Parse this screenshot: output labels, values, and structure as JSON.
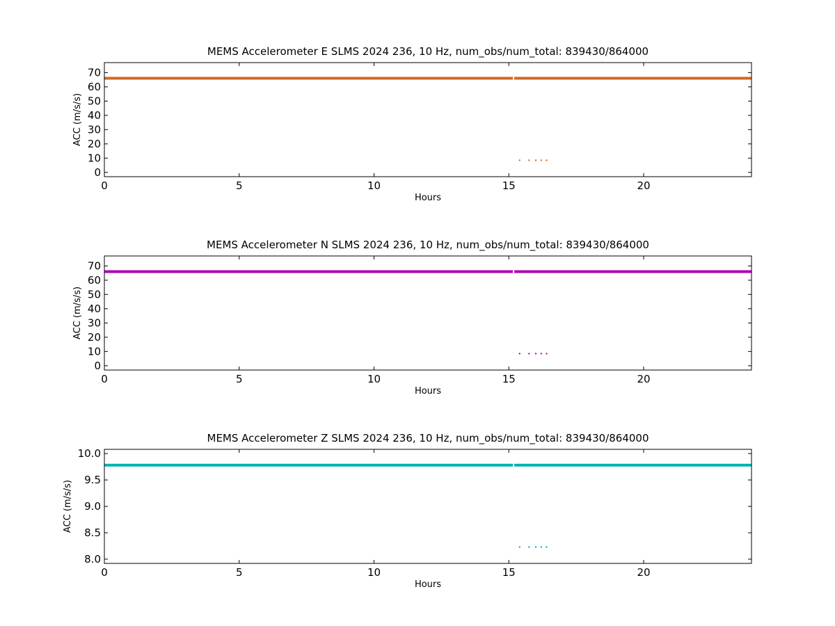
{
  "chart_data": [
    {
      "type": "scatter",
      "title": "MEMS Accelerometer E SLMS 2024 236, 10 Hz, num_obs/num_total: 839430/864000",
      "xlabel": "Hours",
      "ylabel": "ACC (m/s/s)",
      "xlim": [
        0,
        24
      ],
      "ylim": [
        -3,
        77
      ],
      "xticks": [
        0,
        5,
        10,
        15,
        20
      ],
      "yticks": [
        0,
        10,
        20,
        30,
        40,
        50,
        60,
        70
      ],
      "color": "#d2691e",
      "segments": [
        {
          "x": [
            0,
            15.15
          ],
          "y": 66
        },
        {
          "x": [
            15.2,
            24
          ],
          "y": 66
        }
      ],
      "points": [
        {
          "x": 15.4,
          "y": 8.5
        },
        {
          "x": 15.75,
          "y": 8.5
        },
        {
          "x": 16.0,
          "y": 8.5
        },
        {
          "x": 16.2,
          "y": 8.5
        },
        {
          "x": 16.4,
          "y": 8.5
        }
      ]
    },
    {
      "type": "scatter",
      "title": "MEMS Accelerometer N SLMS 2024 236, 10 Hz, num_obs/num_total: 839430/864000",
      "xlabel": "Hours",
      "ylabel": "ACC (m/s/s)",
      "xlim": [
        0,
        24
      ],
      "ylim": [
        -3,
        77
      ],
      "xticks": [
        0,
        5,
        10,
        15,
        20
      ],
      "yticks": [
        0,
        10,
        20,
        30,
        40,
        50,
        60,
        70
      ],
      "color": "#b000b0",
      "segments": [
        {
          "x": [
            0,
            15.15
          ],
          "y": 66
        },
        {
          "x": [
            15.2,
            24
          ],
          "y": 66
        }
      ],
      "points": [
        {
          "x": 15.4,
          "y": 8.5
        },
        {
          "x": 15.75,
          "y": 8.5
        },
        {
          "x": 16.0,
          "y": 8.5
        },
        {
          "x": 16.2,
          "y": 8.5
        },
        {
          "x": 16.4,
          "y": 8.5
        }
      ]
    },
    {
      "type": "scatter",
      "title": "MEMS Accelerometer Z SLMS 2024 236, 10 Hz, num_obs/num_total: 839430/864000",
      "xlabel": "Hours",
      "ylabel": "ACC (m/s/s)",
      "xlim": [
        0,
        24
      ],
      "ylim": [
        7.92,
        10.08
      ],
      "xticks": [
        0,
        5,
        10,
        15,
        20
      ],
      "yticks": [
        8.0,
        8.5,
        9.0,
        9.5,
        10.0
      ],
      "ytick_decimals": 1,
      "color": "#00b3b3",
      "segments": [
        {
          "x": [
            0,
            15.15
          ],
          "y": 9.78
        },
        {
          "x": [
            15.2,
            24
          ],
          "y": 9.78
        }
      ],
      "points": [
        {
          "x": 15.4,
          "y": 8.23
        },
        {
          "x": 15.75,
          "y": 8.23
        },
        {
          "x": 16.0,
          "y": 8.23
        },
        {
          "x": 16.2,
          "y": 8.23
        },
        {
          "x": 16.4,
          "y": 8.23
        }
      ]
    }
  ]
}
